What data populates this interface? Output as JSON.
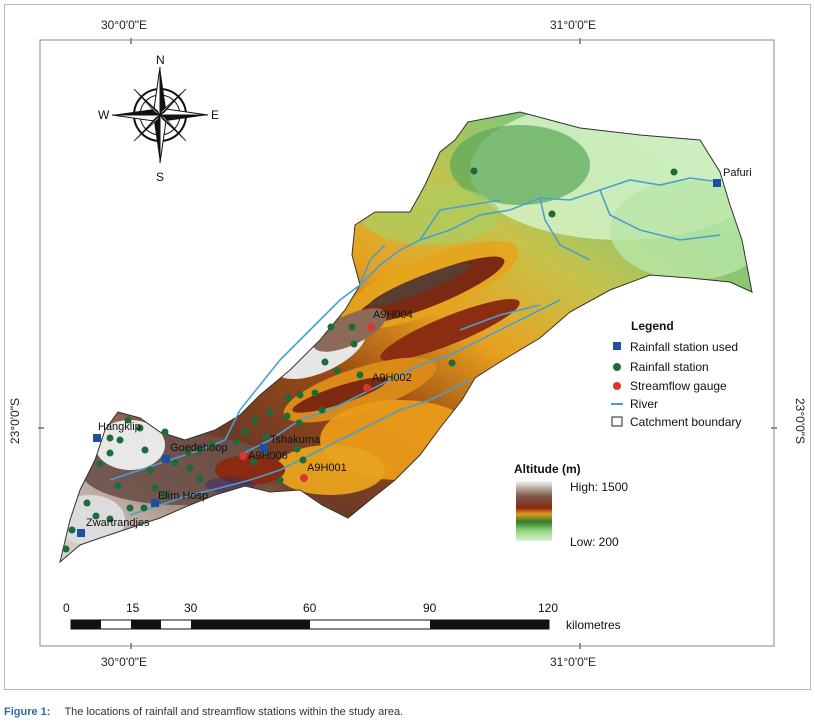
{
  "coords": {
    "top_left": "30°0'0\"E",
    "top_right": "31°0'0\"E",
    "bottom_left": "30°0'0\"E",
    "bottom_right": "31°0'0\"E",
    "left_lat": "23°0'0\"S",
    "right_lat": "23°0'0\"S"
  },
  "compass": {
    "n": "N",
    "s": "S",
    "e": "E",
    "w": "W"
  },
  "places": {
    "pafuri": "Pafuri",
    "hangklip": "Hangklip",
    "goedehoop": "Goedehoop",
    "tshakuma": "Tshakuma",
    "elim_hosp": "Elim Hosp",
    "zwartrandjes": "Zwartrandjes",
    "a9h004": "A9H004",
    "a9h002": "A9H002",
    "a9h006": "A9H006",
    "a9h001": "A9H001"
  },
  "legend": {
    "title": "Legend",
    "rainfall_used": "Rainfall station used",
    "rainfall": "Rainfall station",
    "streamflow": "Streamflow gauge",
    "river": "River",
    "boundary": "Catchment boundary"
  },
  "altitude": {
    "title": "Altitude (m)",
    "high": "High: 1500",
    "low": "Low: 200"
  },
  "scale": {
    "ticks": [
      "0",
      "15",
      "30",
      "60",
      "90",
      "120"
    ],
    "unit": "kilometres"
  },
  "caption": {
    "label": "Figure 1:",
    "text": "The locations of rainfall and streamflow stations within the study area."
  },
  "colors": {
    "rainfall_used": "#1f4fa0",
    "rainfall": "#1e6b3a",
    "streamflow": "#d93535",
    "river": "#4a9fd0"
  }
}
